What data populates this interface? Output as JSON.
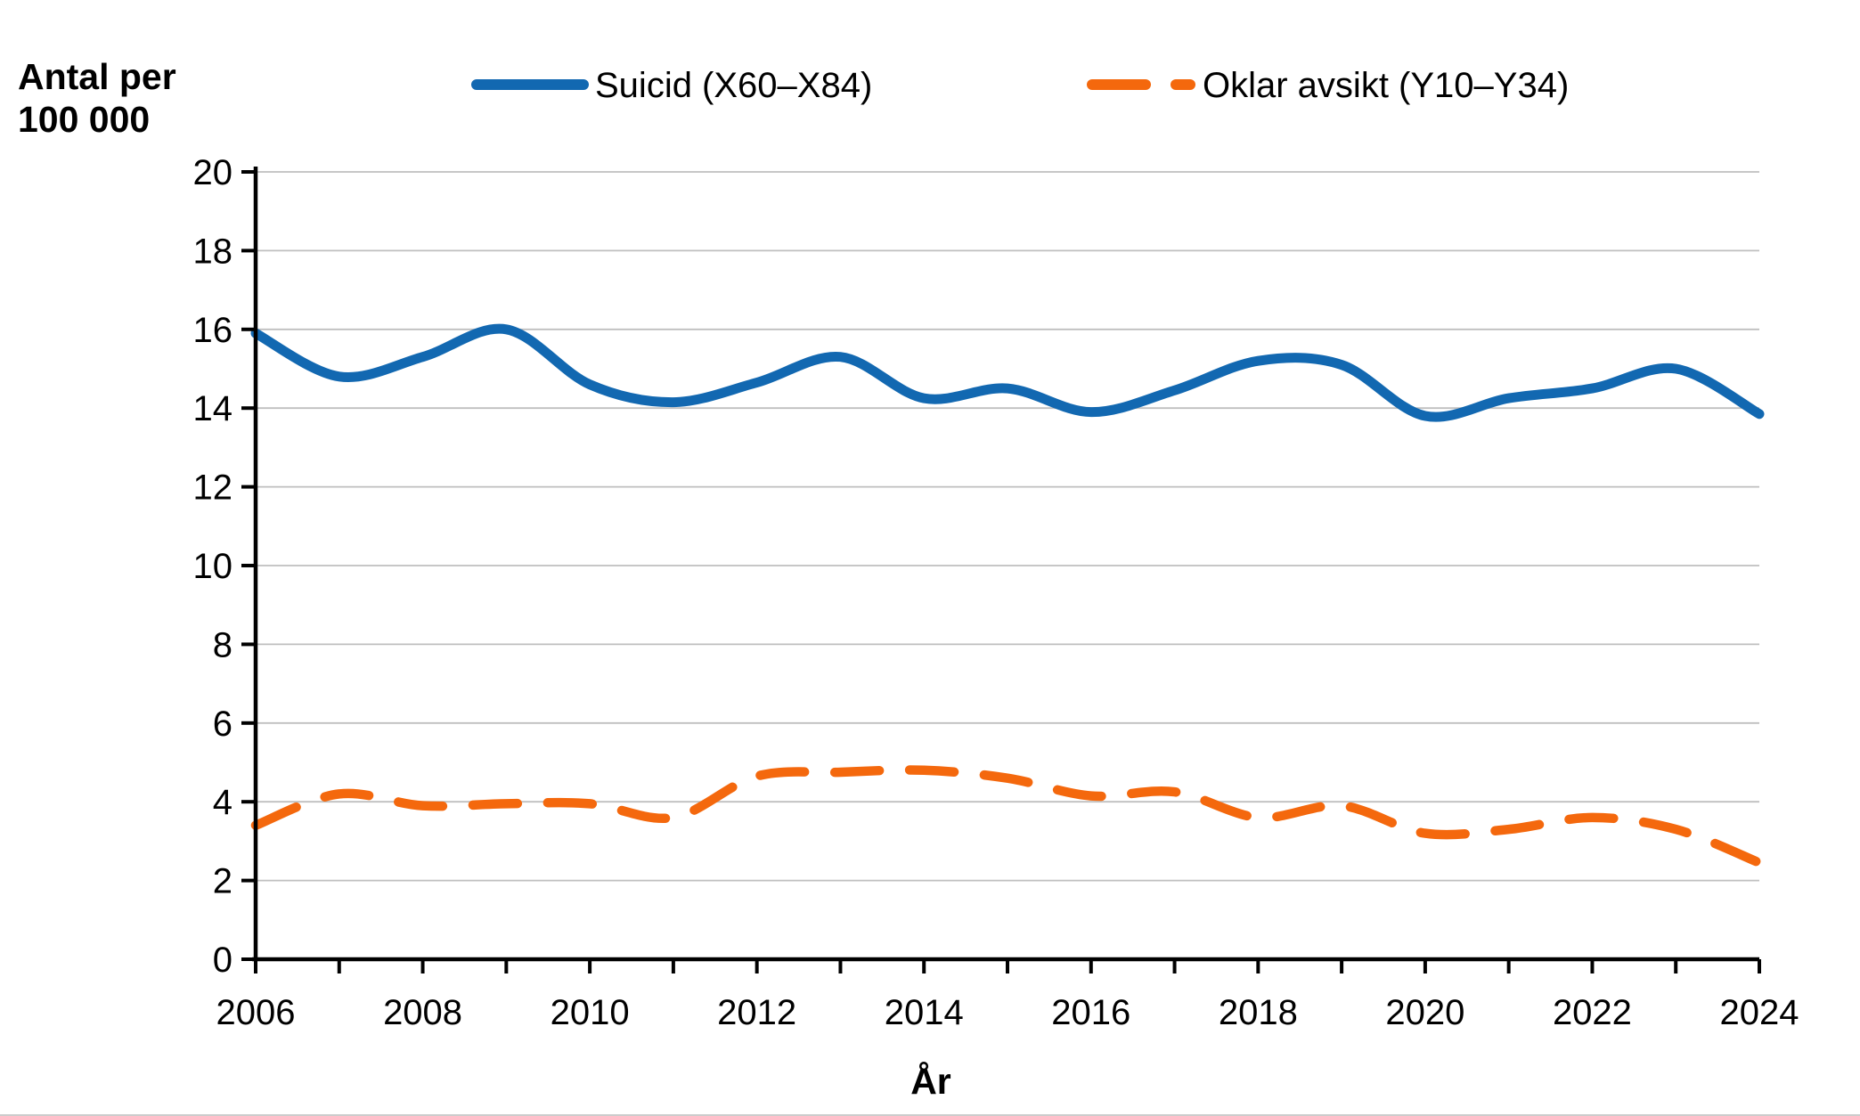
{
  "chart": {
    "ylabel_lines": [
      "Antal per",
      "100 000"
    ],
    "xlabel": "År"
  },
  "chart_data": {
    "type": "line",
    "title": "",
    "xlabel": "År",
    "ylabel": "Antal per 100 000",
    "x": [
      2006,
      2007,
      2008,
      2009,
      2010,
      2011,
      2012,
      2013,
      2014,
      2015,
      2016,
      2017,
      2018,
      2019,
      2020,
      2021,
      2022,
      2023,
      2024
    ],
    "series": [
      {
        "name": "Suicid (X60–X84)",
        "color": "#1268b1",
        "style": "solid",
        "values": [
          15.9,
          14.8,
          15.3,
          16.0,
          14.6,
          14.15,
          14.65,
          15.3,
          14.25,
          14.5,
          13.9,
          14.45,
          15.2,
          15.1,
          13.8,
          14.25,
          14.5,
          15.0,
          13.85
        ]
      },
      {
        "name": "Oklar avsikt (Y10–Y34)",
        "color": "#f4680d",
        "style": "dashed",
        "values": [
          3.4,
          4.2,
          3.9,
          3.95,
          3.95,
          3.6,
          4.65,
          4.75,
          4.8,
          4.6,
          4.15,
          4.25,
          3.6,
          3.9,
          3.2,
          3.3,
          3.6,
          3.3,
          2.45
        ]
      }
    ],
    "ylim": [
      0,
      20
    ],
    "ytick_step": 2,
    "xtick_labels": [
      "2006",
      "2008",
      "2010",
      "2012",
      "2014",
      "2016",
      "2018",
      "2020",
      "2022",
      "2024"
    ],
    "xtick_minor_every_year": true,
    "grid": true,
    "gridline_color": "#bfbfbf",
    "axis_color": "#000000",
    "legend_position": "top"
  }
}
